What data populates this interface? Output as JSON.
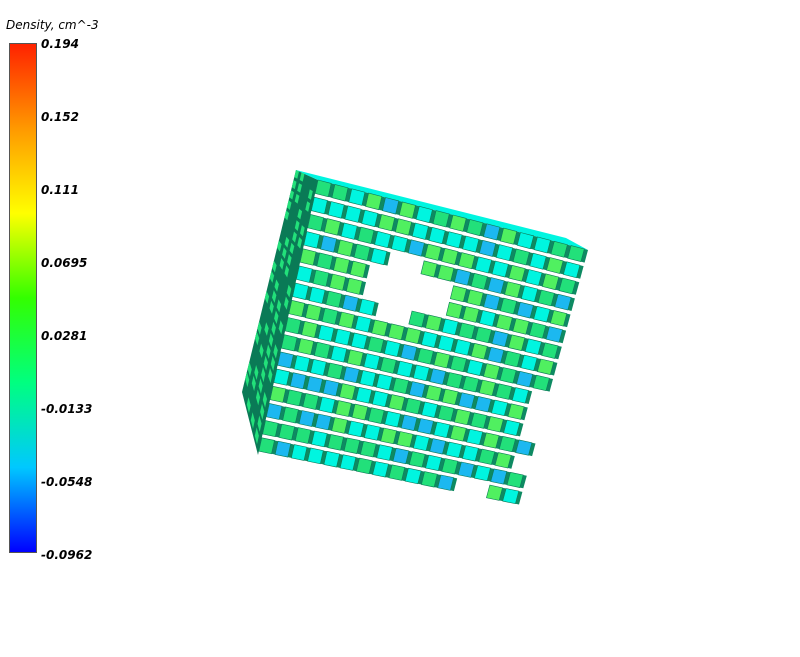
{
  "colorbar": {
    "title": "Density, cm^-3",
    "ticks": [
      "0.194",
      "0.152",
      "0.111",
      "0.0695",
      "0.0281",
      "-0.0133",
      "-0.0548",
      "-0.0962"
    ],
    "min": -0.0962,
    "max": 0.194,
    "colormap": [
      "#0000ff",
      "#00c8ff",
      "#00ff80",
      "#33ff00",
      "#ffff00",
      "#ff9900",
      "#ff2200"
    ]
  },
  "cube": {
    "grid_columns": 16,
    "grid_rows": 16,
    "palette": {
      "edge": "#0a7a56",
      "dark_face": "#0e8a62",
      "cyan": "#00f5e0",
      "green": "#22e07a",
      "light_green": "#50f060",
      "blue": "#1cb8f0"
    }
  }
}
